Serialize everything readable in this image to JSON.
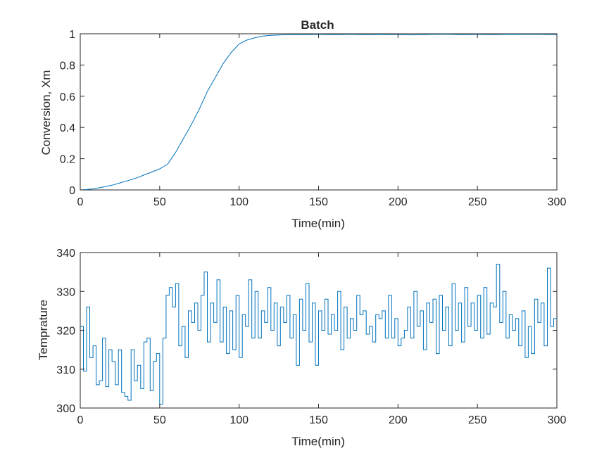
{
  "figure": {
    "background": "#ffffff",
    "axis_color": "#262626",
    "line_color": "#0072BD"
  },
  "chart_data": [
    {
      "type": "line",
      "title": "Batch",
      "xlabel": "Time(min)",
      "ylabel": "Conversion, Xm",
      "xlim": [
        0,
        300
      ],
      "ylim": [
        0,
        1
      ],
      "xticks": [
        0,
        50,
        100,
        150,
        200,
        250,
        300
      ],
      "yticks": [
        0,
        0.2,
        0.4,
        0.6,
        0.8,
        1
      ],
      "grid": false,
      "series": [
        {
          "x": [
            0,
            5,
            10,
            15,
            20,
            25,
            30,
            35,
            40,
            45,
            50,
            55,
            60,
            65,
            70,
            75,
            80,
            85,
            90,
            95,
            100,
            105,
            110,
            115,
            120,
            125,
            130,
            140,
            150,
            160,
            170,
            180,
            190,
            200,
            210,
            220,
            230,
            240,
            250,
            260,
            270,
            280,
            290,
            300
          ],
          "values": [
            0,
            0.003,
            0.01,
            0.02,
            0.03,
            0.045,
            0.06,
            0.075,
            0.095,
            0.115,
            0.135,
            0.165,
            0.24,
            0.33,
            0.42,
            0.52,
            0.63,
            0.72,
            0.81,
            0.88,
            0.935,
            0.96,
            0.975,
            0.985,
            0.99,
            0.992,
            0.994,
            0.995,
            0.996,
            0.995,
            0.996,
            0.995,
            0.996,
            0.994,
            0.993,
            0.996,
            0.997,
            0.995,
            0.996,
            0.995,
            0.997,
            0.996,
            0.996,
            0.995
          ]
        }
      ]
    },
    {
      "type": "line",
      "title": "",
      "xlabel": "Time(min)",
      "ylabel": "Temprature",
      "xlim": [
        0,
        300
      ],
      "ylim": [
        300,
        340
      ],
      "xticks": [
        0,
        50,
        100,
        150,
        200,
        250,
        300
      ],
      "yticks": [
        300,
        310,
        320,
        330,
        340
      ],
      "grid": false,
      "step": true,
      "series": [
        {
          "x": [
            0,
            2,
            4,
            6,
            8,
            10,
            12,
            14,
            16,
            18,
            20,
            22,
            24,
            26,
            28,
            30,
            32,
            34,
            36,
            38,
            40,
            42,
            44,
            46,
            48,
            50,
            52,
            54,
            56,
            58,
            60,
            62,
            64,
            66,
            68,
            70,
            72,
            74,
            76,
            78,
            80,
            82,
            84,
            86,
            88,
            90,
            92,
            94,
            96,
            98,
            100,
            102,
            104,
            106,
            108,
            110,
            112,
            114,
            116,
            118,
            120,
            122,
            124,
            126,
            128,
            130,
            132,
            134,
            136,
            138,
            140,
            142,
            144,
            146,
            148,
            150,
            152,
            154,
            156,
            158,
            160,
            162,
            164,
            166,
            168,
            170,
            172,
            174,
            176,
            178,
            180,
            182,
            184,
            186,
            188,
            190,
            192,
            194,
            196,
            198,
            200,
            202,
            204,
            206,
            208,
            210,
            212,
            214,
            216,
            218,
            220,
            222,
            224,
            226,
            228,
            230,
            232,
            234,
            236,
            238,
            240,
            242,
            244,
            246,
            248,
            250,
            252,
            254,
            256,
            258,
            260,
            262,
            264,
            266,
            268,
            270,
            272,
            274,
            276,
            278,
            280,
            282,
            284,
            286,
            288,
            290,
            292,
            294,
            296,
            298
          ],
          "values": [
            321,
            309.5,
            326,
            313,
            316,
            306,
            307,
            318,
            305.5,
            315,
            312,
            306,
            315,
            304,
            303,
            302,
            315,
            307,
            311,
            305,
            317,
            318,
            304.5,
            312,
            314,
            301,
            318,
            329,
            331,
            326,
            332,
            316,
            321,
            313,
            325,
            322,
            327,
            320,
            329,
            335,
            317,
            327,
            322,
            333,
            317,
            326,
            314,
            325,
            315,
            329,
            313,
            324,
            321,
            333,
            318,
            330,
            318,
            325,
            322,
            331,
            320,
            327,
            316,
            326,
            322,
            329,
            318,
            324,
            311,
            328,
            320,
            332,
            317,
            327,
            311,
            325,
            320,
            328,
            319,
            324,
            320,
            330,
            315,
            326,
            318,
            323,
            320,
            329,
            324,
            325,
            319,
            321,
            317,
            324,
            323,
            325,
            318,
            329,
            318,
            323,
            316,
            318,
            320,
            326,
            318,
            330,
            321,
            325,
            315,
            327,
            322,
            328,
            314,
            329,
            320,
            326,
            316,
            332,
            320,
            327,
            317,
            331,
            321,
            327,
            320,
            329,
            318,
            331,
            319,
            327,
            326,
            337,
            322,
            330,
            318,
            324,
            320,
            323,
            316,
            325,
            313,
            321,
            314,
            328,
            322,
            327,
            316,
            336,
            321,
            323
          ]
        }
      ]
    }
  ]
}
